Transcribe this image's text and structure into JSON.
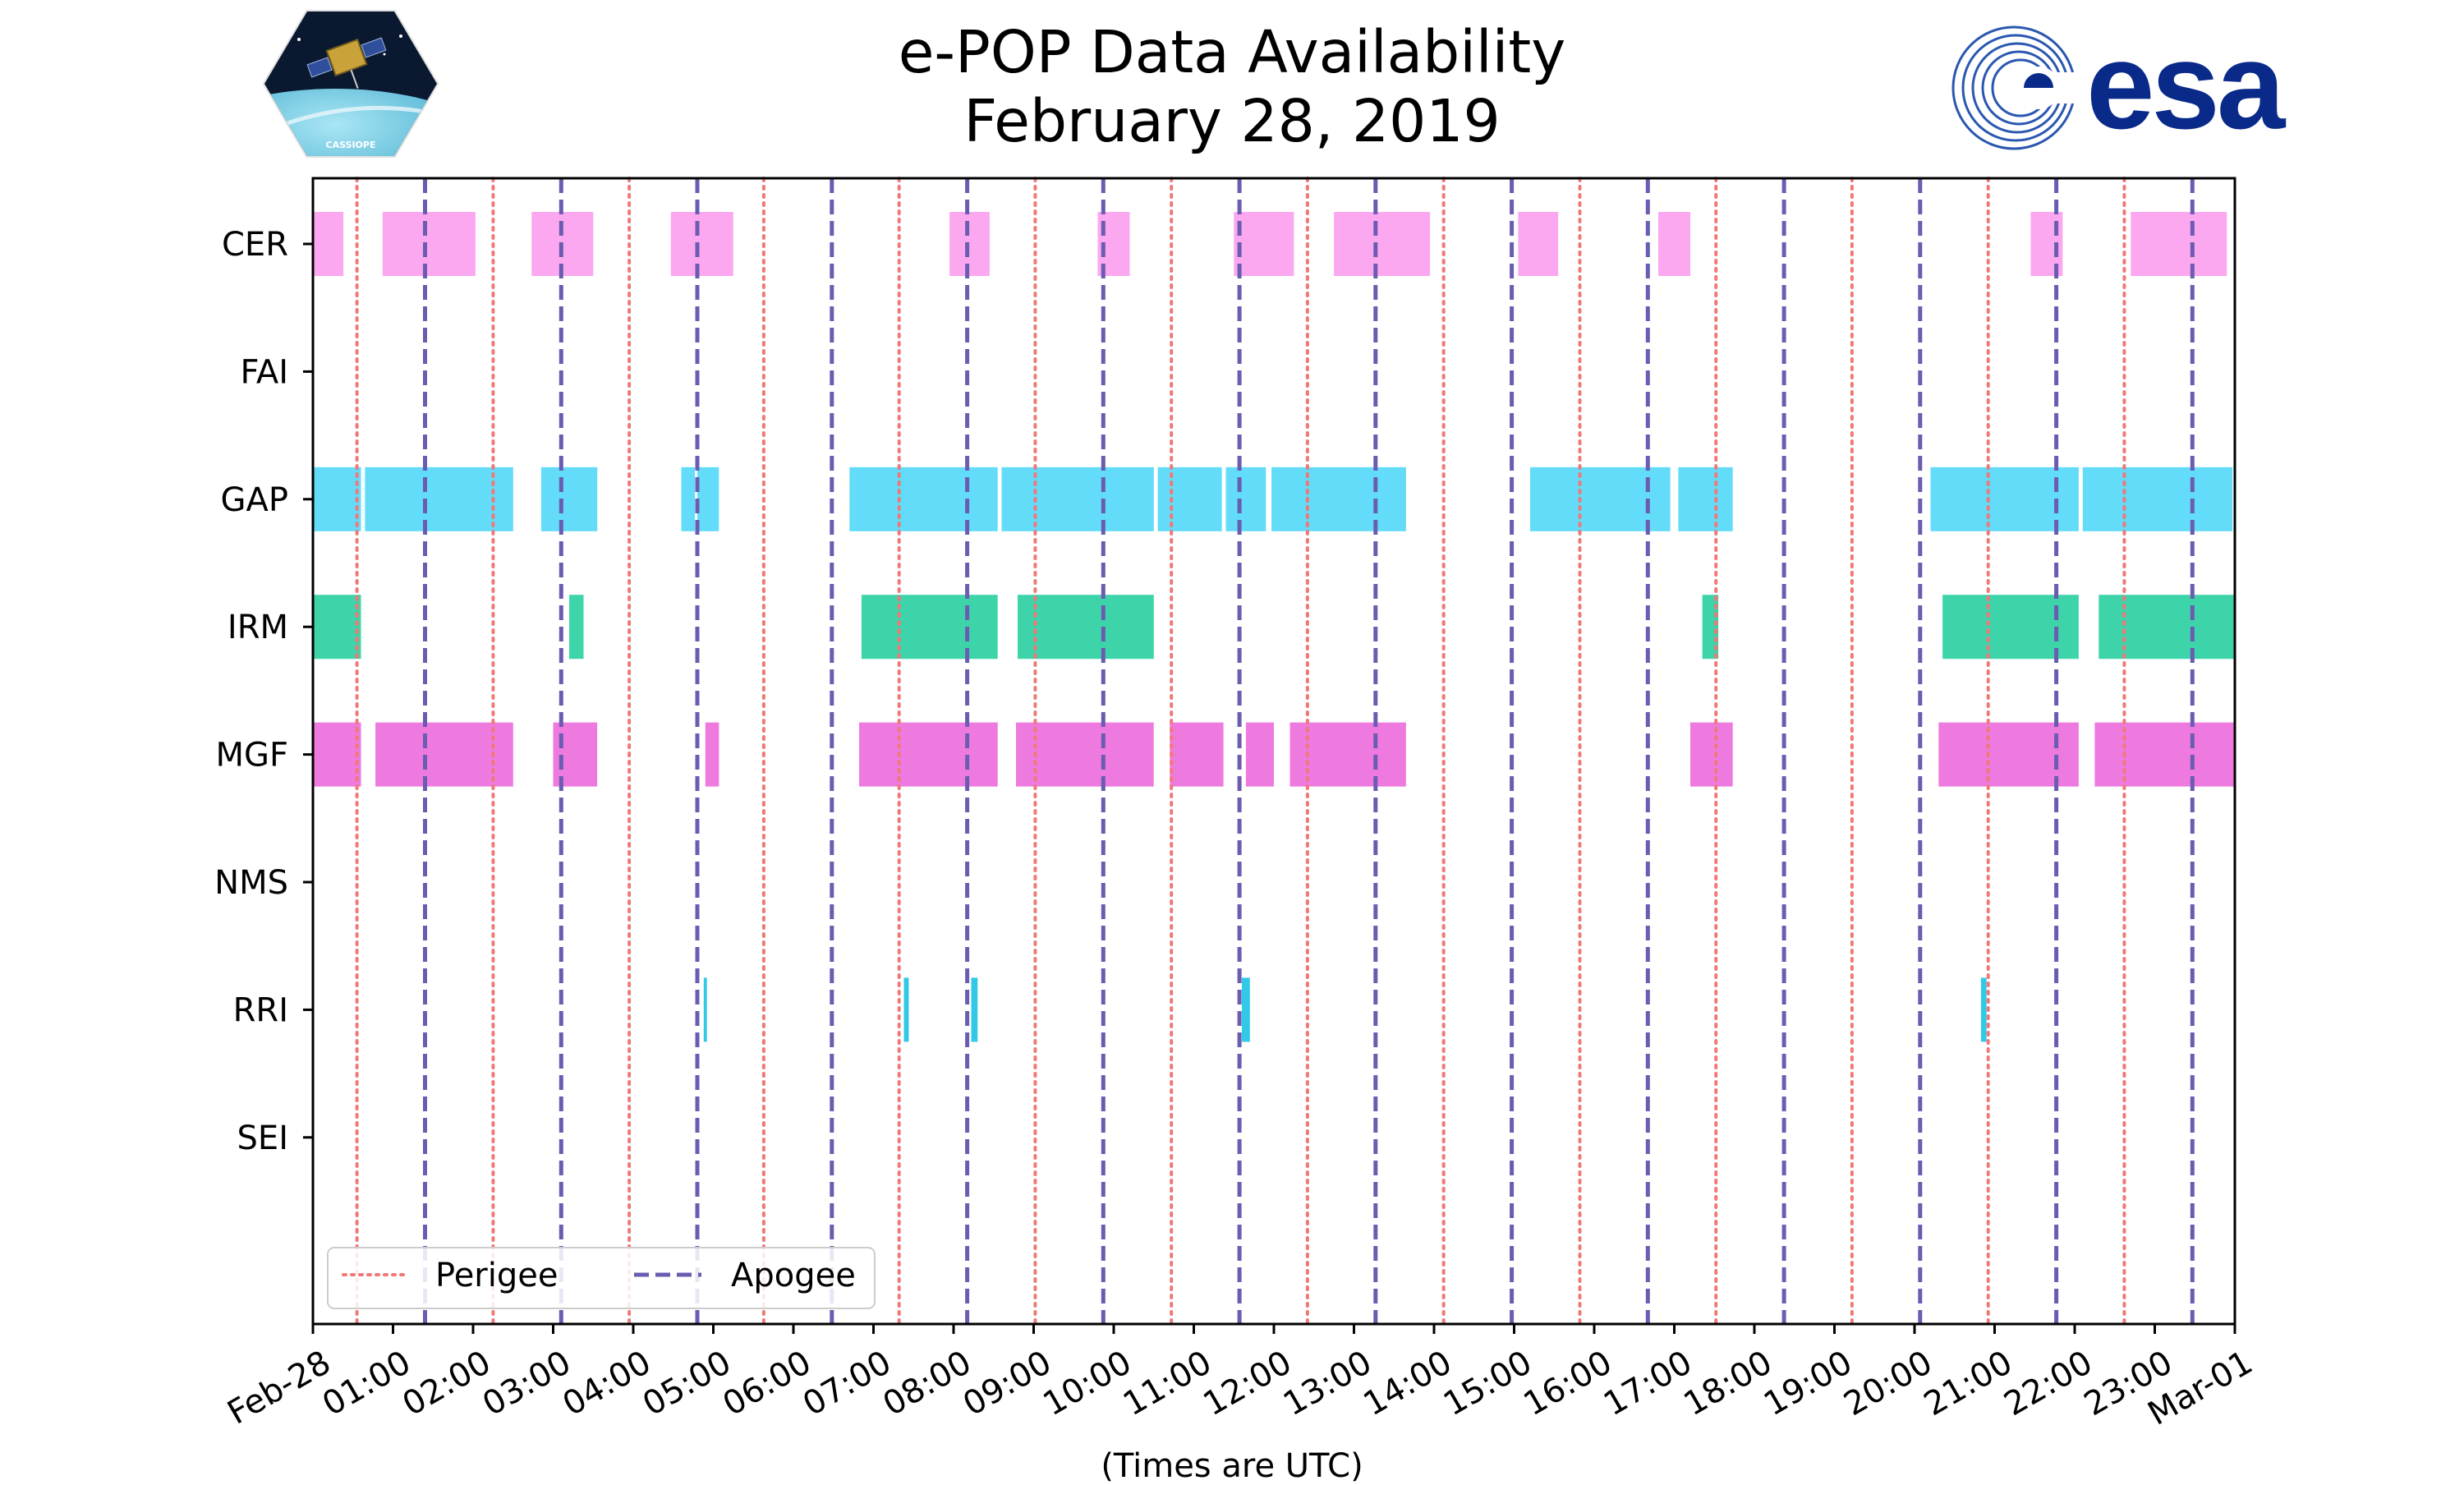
{
  "title": "e-POP Data Availability",
  "subtitle": "February 28, 2019",
  "logos": {
    "left": "CASSIOPE",
    "right": "esa"
  },
  "colors": {
    "perigee": "#f07878",
    "apogee": "#6a5cb0",
    "CER": "#fca8f0",
    "GAP": "#62dcf8",
    "IRM": "#3ed4aa",
    "MGF": "#ee7ae0",
    "RRI": "#32c8e8",
    "logo_blue": "#0a2a8a"
  },
  "chart_data": {
    "type": "timeline",
    "title": "e-POP Data Availability\nFebruary 28, 2019",
    "xlabel": "(Times are UTC)",
    "ylabel": "",
    "xlim_hours": [
      0,
      24
    ],
    "x_tick_hours": [
      0,
      1,
      2,
      3,
      4,
      5,
      6,
      7,
      8,
      9,
      10,
      11,
      12,
      13,
      14,
      15,
      16,
      17,
      18,
      19,
      20,
      21,
      22,
      23,
      24
    ],
    "x_tick_labels": [
      "Feb-28",
      "01:00",
      "02:00",
      "03:00",
      "04:00",
      "05:00",
      "06:00",
      "07:00",
      "08:00",
      "09:00",
      "10:00",
      "11:00",
      "12:00",
      "13:00",
      "14:00",
      "15:00",
      "16:00",
      "17:00",
      "18:00",
      "19:00",
      "20:00",
      "21:00",
      "22:00",
      "23:00",
      "Mar-01"
    ],
    "instruments": [
      "CER",
      "FAI",
      "GAP",
      "IRM",
      "MGF",
      "NMS",
      "RRI",
      "SEI"
    ],
    "perigee_hours": [
      0.55,
      2.25,
      3.95,
      5.63,
      7.32,
      9.02,
      10.72,
      12.42,
      14.12,
      15.82,
      17.52,
      19.22,
      20.92,
      22.62
    ],
    "apogee_hours": [
      1.4,
      3.1,
      4.8,
      6.48,
      8.17,
      9.87,
      11.57,
      13.27,
      14.97,
      16.67,
      18.37,
      20.07,
      21.77,
      23.47
    ],
    "legend": {
      "location": "lower-left",
      "perigee_label": "Perigee",
      "apogee_label": "Apogee"
    },
    "bars": {
      "CER": [
        [
          0,
          0.38
        ],
        [
          0.87,
          2.03
        ],
        [
          2.73,
          3.5
        ],
        [
          4.47,
          5.25
        ],
        [
          7.95,
          8.45
        ],
        [
          9.8,
          10.2
        ],
        [
          11.5,
          12.25
        ],
        [
          12.75,
          13.95
        ],
        [
          15.05,
          15.55
        ],
        [
          16.8,
          17.2
        ],
        [
          21.45,
          21.85
        ],
        [
          22.7,
          23.9
        ]
      ],
      "FAI": [],
      "GAP": [
        [
          0,
          0.6
        ],
        [
          0.65,
          2.5
        ],
        [
          2.85,
          3.55
        ],
        [
          4.6,
          4.77
        ],
        [
          4.8,
          5.07
        ],
        [
          6.7,
          8.55
        ],
        [
          8.6,
          10.5
        ],
        [
          10.55,
          11.35
        ],
        [
          11.4,
          11.9
        ],
        [
          11.97,
          13.65
        ],
        [
          15.2,
          16.95
        ],
        [
          17.05,
          17.73
        ],
        [
          20.2,
          22.05
        ],
        [
          22.1,
          23.97
        ]
      ],
      "IRM": [
        [
          0,
          0.6
        ],
        [
          3.2,
          3.38
        ],
        [
          6.85,
          8.55
        ],
        [
          8.8,
          10.5
        ],
        [
          17.35,
          17.55
        ],
        [
          20.35,
          22.05
        ],
        [
          22.3,
          24
        ]
      ],
      "MGF": [
        [
          0,
          0.6
        ],
        [
          0.78,
          2.5
        ],
        [
          3.0,
          3.55
        ],
        [
          4.9,
          5.07
        ],
        [
          6.82,
          8.55
        ],
        [
          8.78,
          10.5
        ],
        [
          10.7,
          11.37
        ],
        [
          11.65,
          12.0
        ],
        [
          12.2,
          13.65
        ],
        [
          17.2,
          17.73
        ],
        [
          20.3,
          22.05
        ],
        [
          22.25,
          24
        ]
      ],
      "NMS": [],
      "RRI": [
        [
          4.88,
          4.92
        ],
        [
          7.38,
          7.44
        ],
        [
          8.22,
          8.3
        ],
        [
          11.6,
          11.7
        ],
        [
          20.83,
          20.9
        ]
      ],
      "SEI": []
    }
  }
}
